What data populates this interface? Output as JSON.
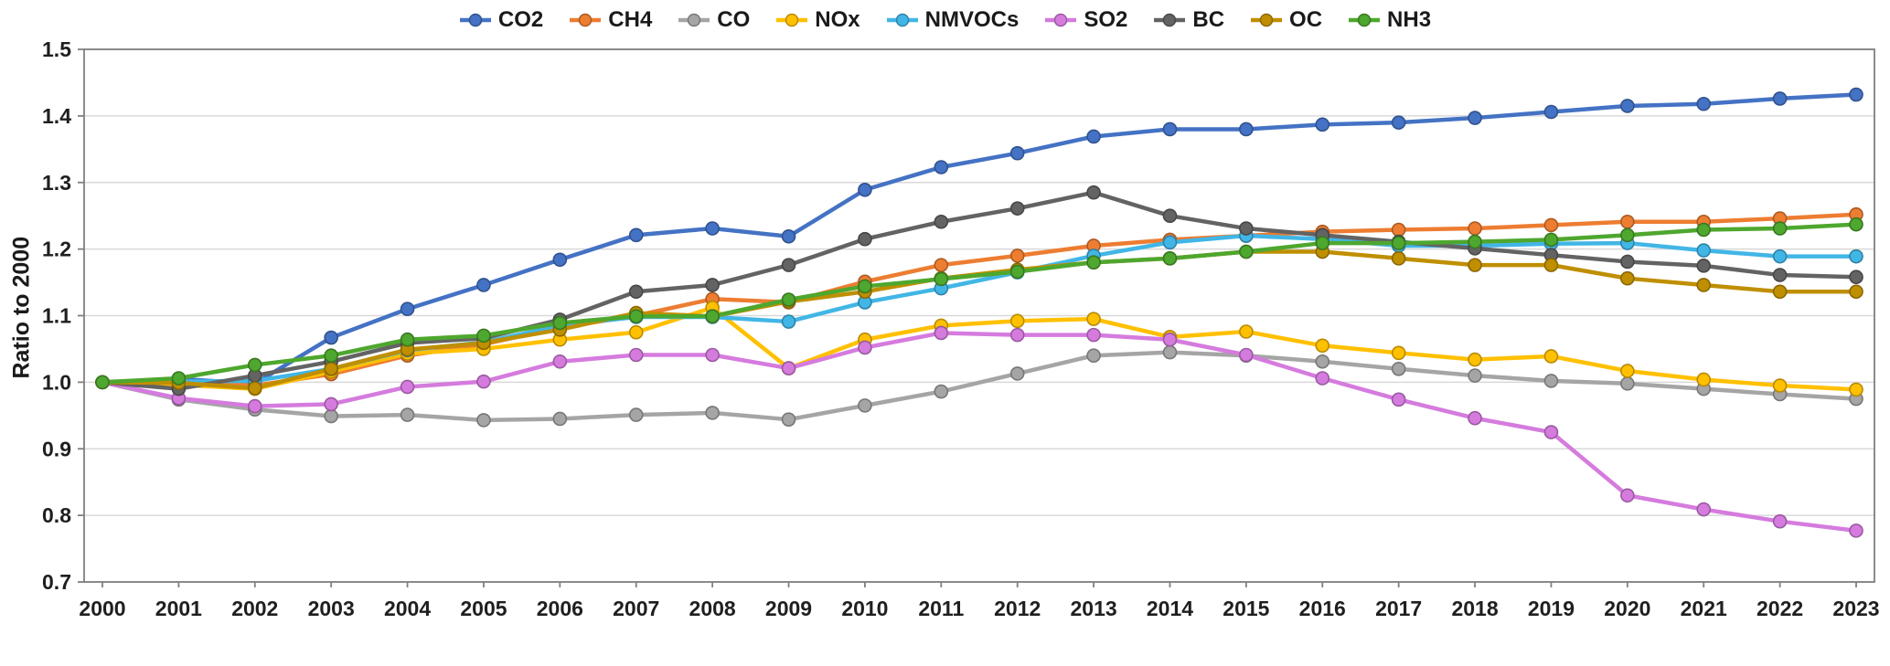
{
  "chart_data": {
    "type": "line",
    "title": "",
    "ylabel": "Ratio to 2000",
    "xlabel": "",
    "ylim": [
      0.7,
      1.5
    ],
    "ytick_step": 0.1,
    "grid": true,
    "legend_position": "top",
    "axis_color": "#808080",
    "grid_color": "#d9d9d9",
    "x": [
      2000,
      2001,
      2002,
      2003,
      2004,
      2005,
      2006,
      2007,
      2008,
      2009,
      2010,
      2011,
      2012,
      2013,
      2014,
      2015,
      2016,
      2017,
      2018,
      2019,
      2020,
      2021,
      2022,
      2023
    ],
    "series": [
      {
        "name": "CO2",
        "color": "#4472C4",
        "values": [
          1.0,
          1.005,
          0.998,
          1.067,
          1.11,
          1.146,
          1.184,
          1.221,
          1.231,
          1.219,
          1.289,
          1.323,
          1.344,
          1.369,
          1.38,
          1.38,
          1.387,
          1.39,
          1.397,
          1.406,
          1.415,
          1.418,
          1.426,
          1.432
        ]
      },
      {
        "name": "CH4",
        "color": "#ED7D31",
        "values": [
          1.0,
          1.0,
          0.995,
          1.012,
          1.04,
          1.057,
          1.082,
          1.1,
          1.125,
          1.12,
          1.151,
          1.176,
          1.19,
          1.205,
          1.214,
          1.22,
          1.226,
          1.229,
          1.231,
          1.236,
          1.241,
          1.241,
          1.246,
          1.252
        ]
      },
      {
        "name": "CO",
        "color": "#A5A5A5",
        "values": [
          1.0,
          0.974,
          0.959,
          0.949,
          0.951,
          0.943,
          0.945,
          0.951,
          0.954,
          0.944,
          0.965,
          0.986,
          1.013,
          1.04,
          1.045,
          1.04,
          1.031,
          1.02,
          1.01,
          1.002,
          0.998,
          0.99,
          0.982,
          0.975
        ]
      },
      {
        "name": "NOx",
        "color": "#FFC000",
        "values": [
          1.0,
          0.996,
          0.99,
          1.016,
          1.043,
          1.05,
          1.064,
          1.075,
          1.112,
          1.021,
          1.064,
          1.085,
          1.092,
          1.095,
          1.068,
          1.076,
          1.055,
          1.044,
          1.034,
          1.039,
          1.017,
          1.004,
          0.995,
          0.989
        ]
      },
      {
        "name": "NMVOCs",
        "color": "#41B6E6",
        "values": [
          1.0,
          1.001,
          1.002,
          1.02,
          1.048,
          1.06,
          1.085,
          1.098,
          1.098,
          1.091,
          1.12,
          1.141,
          1.165,
          1.19,
          1.21,
          1.22,
          1.215,
          1.205,
          1.205,
          1.208,
          1.209,
          1.198,
          1.189,
          1.189
        ]
      },
      {
        "name": "SO2",
        "color": "#D57BDE",
        "values": [
          1.0,
          0.976,
          0.964,
          0.967,
          0.993,
          1.001,
          1.031,
          1.041,
          1.041,
          1.021,
          1.052,
          1.074,
          1.071,
          1.071,
          1.064,
          1.041,
          1.006,
          0.974,
          0.946,
          0.925,
          0.83,
          0.809,
          0.791,
          0.777
        ]
      },
      {
        "name": "BC",
        "color": "#636363",
        "values": [
          1.0,
          0.99,
          1.01,
          1.031,
          1.059,
          1.066,
          1.094,
          1.136,
          1.146,
          1.176,
          1.215,
          1.241,
          1.261,
          1.285,
          1.25,
          1.231,
          1.221,
          1.211,
          1.201,
          1.191,
          1.181,
          1.175,
          1.161,
          1.158
        ]
      },
      {
        "name": "OC",
        "color": "#BF8F00",
        "values": [
          1.0,
          0.999,
          0.991,
          1.02,
          1.049,
          1.059,
          1.079,
          1.104,
          1.099,
          1.121,
          1.136,
          1.156,
          1.169,
          1.18,
          1.186,
          1.196,
          1.196,
          1.186,
          1.176,
          1.176,
          1.156,
          1.146,
          1.136,
          1.136
        ]
      },
      {
        "name": "NH3",
        "color": "#4EA72E",
        "values": [
          1.0,
          1.006,
          1.026,
          1.04,
          1.064,
          1.07,
          1.089,
          1.099,
          1.099,
          1.124,
          1.144,
          1.155,
          1.166,
          1.18,
          1.186,
          1.196,
          1.209,
          1.209,
          1.211,
          1.214,
          1.221,
          1.229,
          1.231,
          1.237
        ]
      }
    ]
  }
}
